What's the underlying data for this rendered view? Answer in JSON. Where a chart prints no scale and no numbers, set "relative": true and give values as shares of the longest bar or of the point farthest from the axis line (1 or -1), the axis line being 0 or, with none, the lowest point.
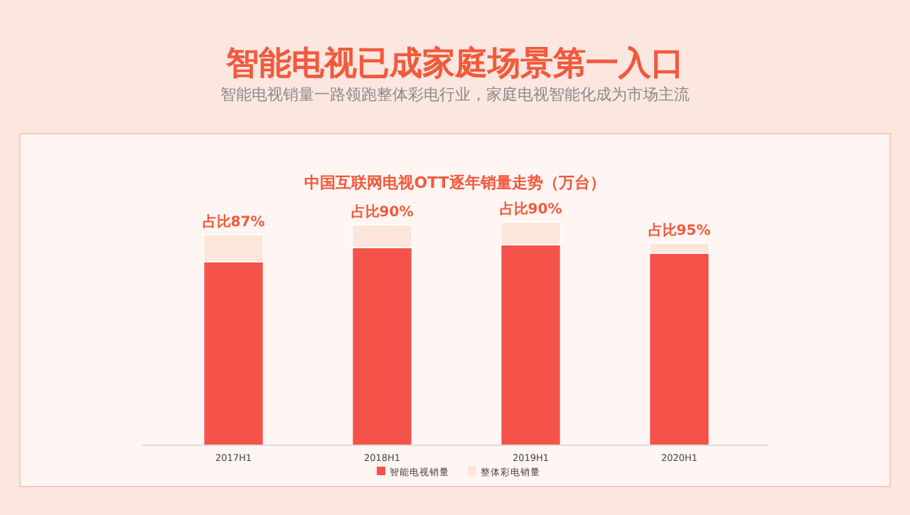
{
  "chart_data": {
    "type": "bar",
    "title": "智能电视已成家庭场景第一入口",
    "subtitle": "智能电视销量一路领跑整体彩电行业，家庭电视智能化成为市场主流",
    "xlabel": "中国互联网电视OTT逐年销量走势（万台）",
    "categories": [
      "2017H1",
      "2018H1",
      "2019H1",
      "2020H1"
    ],
    "stacked": true,
    "relative": true,
    "legend": "bottom",
    "series": [
      {
        "name": "智能电视销量",
        "color": "#f5524a",
        "values": [
          0.822,
          0.885,
          0.898,
          0.86
        ]
      },
      {
        "name": "整体彩电销量",
        "color": "#fbe6d9",
        "values": [
          0.121,
          0.102,
          0.102,
          0.045
        ]
      }
    ],
    "annotations": [
      {
        "text": "占比87%",
        "x": "2017H1",
        "y": 0.943
      },
      {
        "text": "占比90%",
        "x": "2018H1",
        "y": 0.987
      },
      {
        "text": "占比90%",
        "x": "2019H1",
        "y": 1.0
      },
      {
        "text": "占比95%",
        "x": "2020H1",
        "y": 0.905
      }
    ]
  }
}
